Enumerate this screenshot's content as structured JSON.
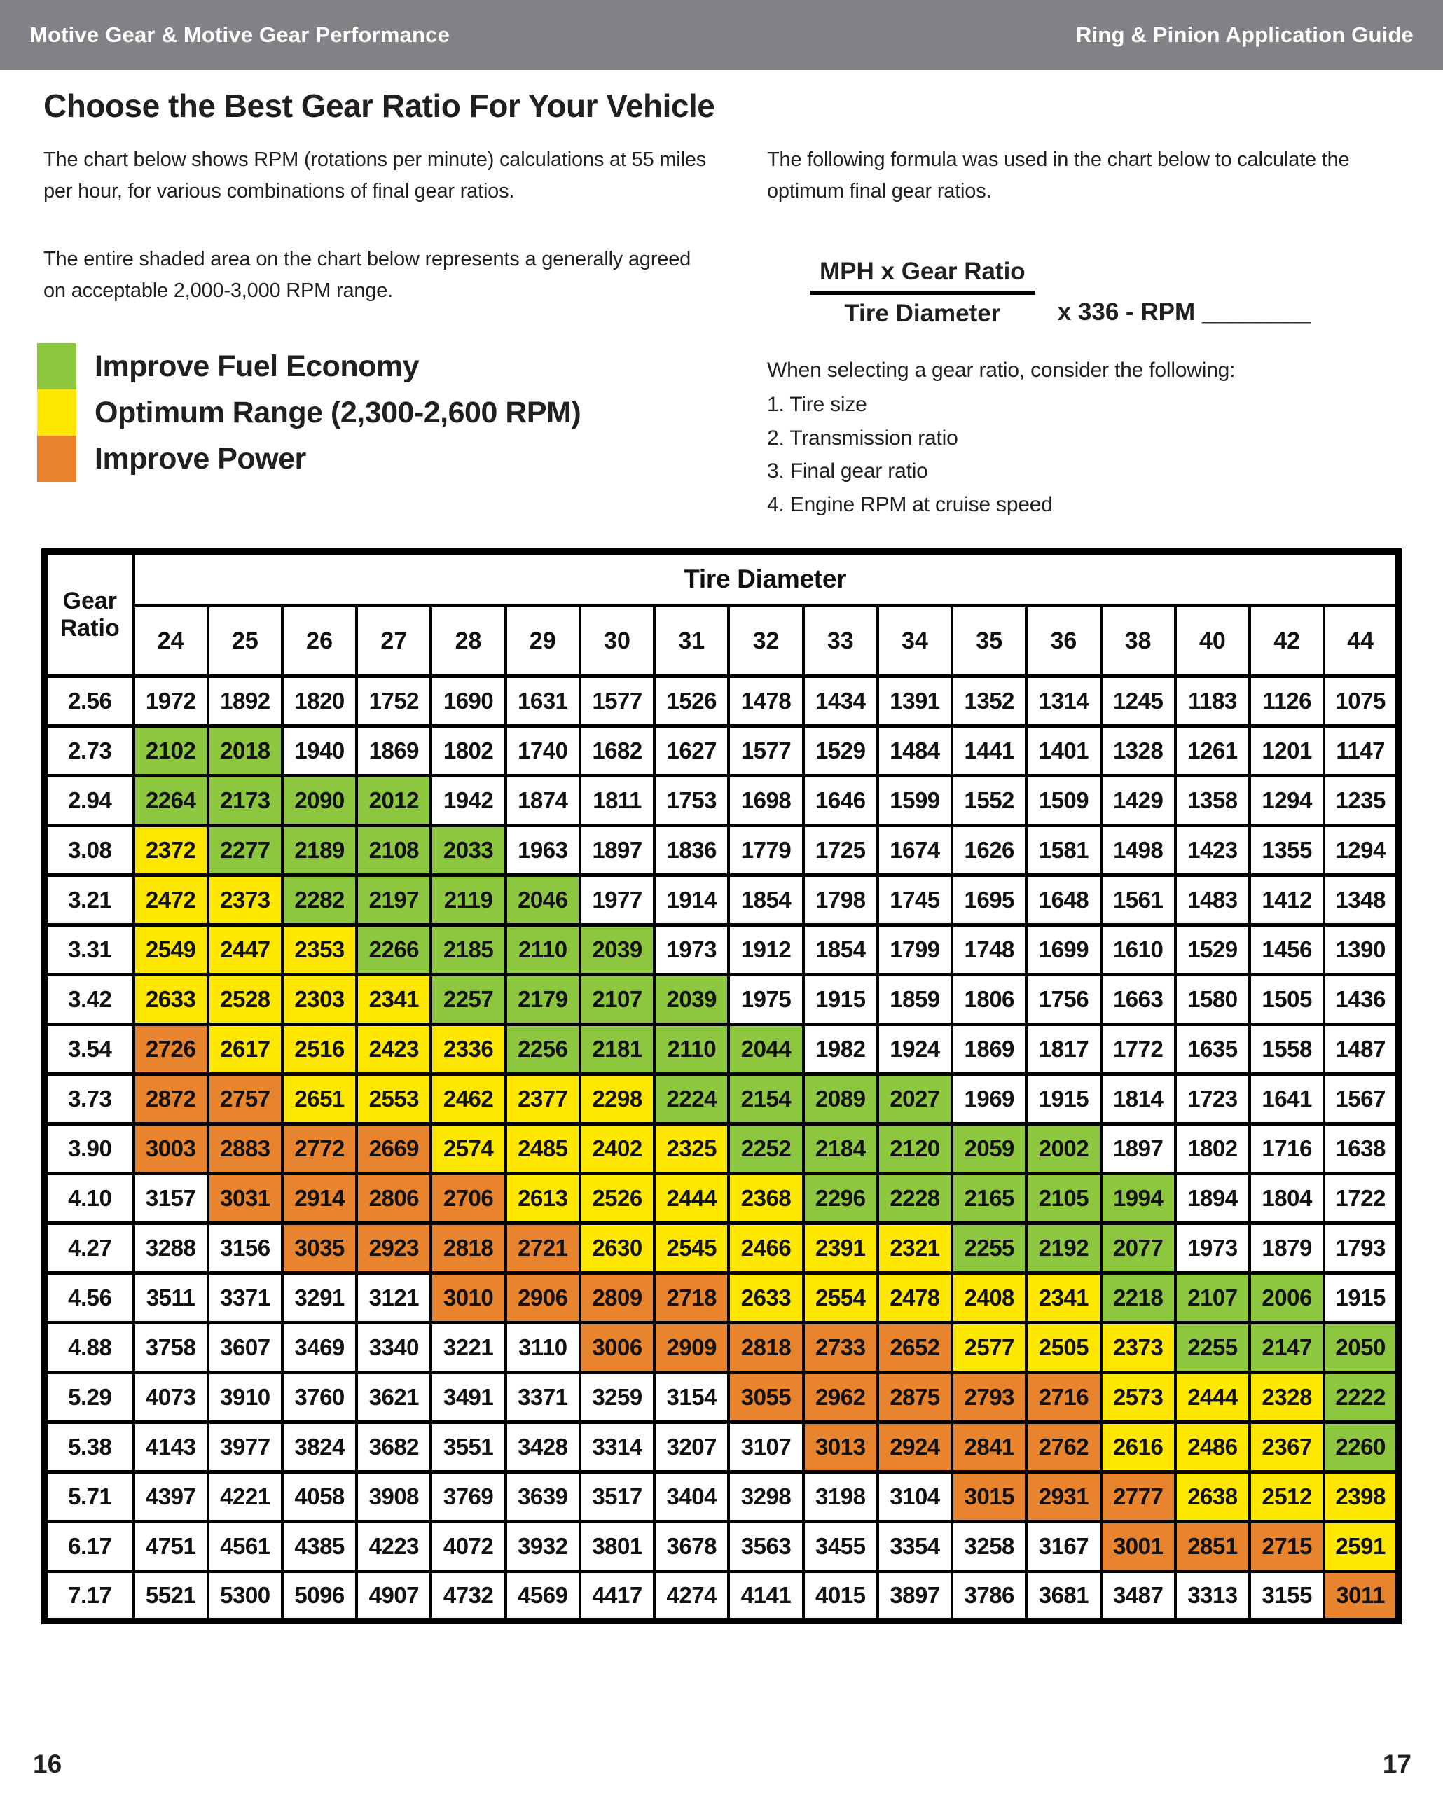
{
  "header": {
    "left": "Motive Gear & Motive Gear Performance",
    "right": "Ring & Pinion Application Guide"
  },
  "intro": {
    "title": "Choose the Best Gear Ratio For Your Vehicle",
    "para1": "The chart below shows RPM (rotations per minute) calculations at 55 miles per hour, for various combinations of final gear ratios.",
    "para2": "The entire shaded area on the chart below represents a generally agreed on acceptable 2,000-3,000 RPM range."
  },
  "legend": {
    "items": [
      {
        "key": "g",
        "label": "Improve Fuel Economy",
        "color": "#8DC63F"
      },
      {
        "key": "y",
        "label": "Optimum Range (2,300-2,600 RPM)",
        "color": "#FFE800"
      },
      {
        "key": "o",
        "label": "Improve Power",
        "color": "#E8832E"
      }
    ]
  },
  "formula": {
    "intro": "The following formula was used in the chart below to calculate the optimum final gear ratios.",
    "numerator": "MPH x Gear Ratio",
    "denominator": "Tire Diameter",
    "suffix": "x 336 - RPM ________",
    "considerations_title": "When selecting a gear ratio, consider the following:",
    "considerations": [
      "1. Tire size",
      "2. Transmission ratio",
      "3. Final gear ratio",
      "4. Engine RPM at cruise speed"
    ]
  },
  "colors": {
    "header_bar": "#808285",
    "table_white": "#FFFFFF",
    "green": "#8DC63F",
    "yellow": "#FFE800",
    "orange": "#E8832E"
  },
  "chart_data": {
    "type": "table",
    "title": "Tire Diameter",
    "row_header": "Gear Ratio",
    "columns": [
      "24",
      "25",
      "26",
      "27",
      "28",
      "29",
      "30",
      "31",
      "32",
      "33",
      "34",
      "35",
      "36",
      "38",
      "40",
      "42",
      "44"
    ],
    "color_key": {
      "w": "#FFFFFF",
      "g": "#8DC63F",
      "y": "#FFE800",
      "o": "#E8832E"
    },
    "legend_meaning": {
      "g": "Improve Fuel Economy",
      "y": "Optimum Range (2,300-2,600 RPM)",
      "o": "Improve Power"
    },
    "rows": [
      {
        "ratio": "2.56",
        "values": [
          1972,
          1892,
          1820,
          1752,
          1690,
          1631,
          1577,
          1526,
          1478,
          1434,
          1391,
          1352,
          1314,
          1245,
          1183,
          1126,
          1075
        ],
        "colors": [
          "w",
          "w",
          "w",
          "w",
          "w",
          "w",
          "w",
          "w",
          "w",
          "w",
          "w",
          "w",
          "w",
          "w",
          "w",
          "w",
          "w"
        ]
      },
      {
        "ratio": "2.73",
        "values": [
          2102,
          2018,
          1940,
          1869,
          1802,
          1740,
          1682,
          1627,
          1577,
          1529,
          1484,
          1441,
          1401,
          1328,
          1261,
          1201,
          1147
        ],
        "colors": [
          "g",
          "g",
          "w",
          "w",
          "w",
          "w",
          "w",
          "w",
          "w",
          "w",
          "w",
          "w",
          "w",
          "w",
          "w",
          "w",
          "w"
        ]
      },
      {
        "ratio": "2.94",
        "values": [
          2264,
          2173,
          2090,
          2012,
          1942,
          1874,
          1811,
          1753,
          1698,
          1646,
          1599,
          1552,
          1509,
          1429,
          1358,
          1294,
          1235
        ],
        "colors": [
          "g",
          "g",
          "g",
          "g",
          "w",
          "w",
          "w",
          "w",
          "w",
          "w",
          "w",
          "w",
          "w",
          "w",
          "w",
          "w",
          "w"
        ]
      },
      {
        "ratio": "3.08",
        "values": [
          2372,
          2277,
          2189,
          2108,
          2033,
          1963,
          1897,
          1836,
          1779,
          1725,
          1674,
          1626,
          1581,
          1498,
          1423,
          1355,
          1294
        ],
        "colors": [
          "y",
          "g",
          "g",
          "g",
          "g",
          "w",
          "w",
          "w",
          "w",
          "w",
          "w",
          "w",
          "w",
          "w",
          "w",
          "w",
          "w"
        ]
      },
      {
        "ratio": "3.21",
        "values": [
          2472,
          2373,
          2282,
          2197,
          2119,
          2046,
          1977,
          1914,
          1854,
          1798,
          1745,
          1695,
          1648,
          1561,
          1483,
          1412,
          1348
        ],
        "colors": [
          "y",
          "y",
          "g",
          "g",
          "g",
          "g",
          "w",
          "w",
          "w",
          "w",
          "w",
          "w",
          "w",
          "w",
          "w",
          "w",
          "w"
        ]
      },
      {
        "ratio": "3.31",
        "values": [
          2549,
          2447,
          2353,
          2266,
          2185,
          2110,
          2039,
          1973,
          1912,
          1854,
          1799,
          1748,
          1699,
          1610,
          1529,
          1456,
          1390
        ],
        "colors": [
          "y",
          "y",
          "y",
          "g",
          "g",
          "g",
          "g",
          "w",
          "w",
          "w",
          "w",
          "w",
          "w",
          "w",
          "w",
          "w",
          "w"
        ]
      },
      {
        "ratio": "3.42",
        "values": [
          2633,
          2528,
          2303,
          2341,
          2257,
          2179,
          2107,
          2039,
          1975,
          1915,
          1859,
          1806,
          1756,
          1663,
          1580,
          1505,
          1436
        ],
        "colors": [
          "y",
          "y",
          "y",
          "y",
          "g",
          "g",
          "g",
          "g",
          "w",
          "w",
          "w",
          "w",
          "w",
          "w",
          "w",
          "w",
          "w"
        ]
      },
      {
        "ratio": "3.54",
        "values": [
          2726,
          2617,
          2516,
          2423,
          2336,
          2256,
          2181,
          2110,
          2044,
          1982,
          1924,
          1869,
          1817,
          1772,
          1635,
          1558,
          1487
        ],
        "colors": [
          "o",
          "y",
          "y",
          "y",
          "y",
          "g",
          "g",
          "g",
          "g",
          "w",
          "w",
          "w",
          "w",
          "w",
          "w",
          "w",
          "w"
        ]
      },
      {
        "ratio": "3.73",
        "values": [
          2872,
          2757,
          2651,
          2553,
          2462,
          2377,
          2298,
          2224,
          2154,
          2089,
          2027,
          1969,
          1915,
          1814,
          1723,
          1641,
          1567
        ],
        "colors": [
          "o",
          "o",
          "y",
          "y",
          "y",
          "y",
          "y",
          "g",
          "g",
          "g",
          "g",
          "w",
          "w",
          "w",
          "w",
          "w",
          "w"
        ]
      },
      {
        "ratio": "3.90",
        "values": [
          3003,
          2883,
          2772,
          2669,
          2574,
          2485,
          2402,
          2325,
          2252,
          2184,
          2120,
          2059,
          2002,
          1897,
          1802,
          1716,
          1638
        ],
        "colors": [
          "o",
          "o",
          "o",
          "o",
          "y",
          "y",
          "y",
          "y",
          "g",
          "g",
          "g",
          "g",
          "g",
          "w",
          "w",
          "w",
          "w"
        ]
      },
      {
        "ratio": "4.10",
        "values": [
          3157,
          3031,
          2914,
          2806,
          2706,
          2613,
          2526,
          2444,
          2368,
          2296,
          2228,
          2165,
          2105,
          1994,
          1894,
          1804,
          1722
        ],
        "colors": [
          "w",
          "o",
          "o",
          "o",
          "o",
          "y",
          "y",
          "y",
          "y",
          "g",
          "g",
          "g",
          "g",
          "g",
          "w",
          "w",
          "w"
        ]
      },
      {
        "ratio": "4.27",
        "values": [
          3288,
          3156,
          3035,
          2923,
          2818,
          2721,
          2630,
          2545,
          2466,
          2391,
          2321,
          2255,
          2192,
          2077,
          1973,
          1879,
          1793
        ],
        "colors": [
          "w",
          "w",
          "o",
          "o",
          "o",
          "o",
          "y",
          "y",
          "y",
          "y",
          "y",
          "g",
          "g",
          "g",
          "w",
          "w",
          "w"
        ]
      },
      {
        "ratio": "4.56",
        "values": [
          3511,
          3371,
          3291,
          3121,
          3010,
          2906,
          2809,
          2718,
          2633,
          2554,
          2478,
          2408,
          2341,
          2218,
          2107,
          2006,
          1915
        ],
        "colors": [
          "w",
          "w",
          "w",
          "w",
          "o",
          "o",
          "o",
          "o",
          "y",
          "y",
          "y",
          "y",
          "y",
          "g",
          "g",
          "g",
          "w"
        ]
      },
      {
        "ratio": "4.88",
        "values": [
          3758,
          3607,
          3469,
          3340,
          3221,
          3110,
          3006,
          2909,
          2818,
          2733,
          2652,
          2577,
          2505,
          2373,
          2255,
          2147,
          2050
        ],
        "colors": [
          "w",
          "w",
          "w",
          "w",
          "w",
          "w",
          "o",
          "o",
          "o",
          "o",
          "o",
          "y",
          "y",
          "y",
          "g",
          "g",
          "g"
        ]
      },
      {
        "ratio": "5.29",
        "values": [
          4073,
          3910,
          3760,
          3621,
          3491,
          3371,
          3259,
          3154,
          3055,
          2962,
          2875,
          2793,
          2716,
          2573,
          2444,
          2328,
          2222
        ],
        "colors": [
          "w",
          "w",
          "w",
          "w",
          "w",
          "w",
          "w",
          "w",
          "o",
          "o",
          "o",
          "o",
          "o",
          "y",
          "y",
          "y",
          "g"
        ]
      },
      {
        "ratio": "5.38",
        "values": [
          4143,
          3977,
          3824,
          3682,
          3551,
          3428,
          3314,
          3207,
          3107,
          3013,
          2924,
          2841,
          2762,
          2616,
          2486,
          2367,
          2260
        ],
        "colors": [
          "w",
          "w",
          "w",
          "w",
          "w",
          "w",
          "w",
          "w",
          "w",
          "o",
          "o",
          "o",
          "o",
          "y",
          "y",
          "y",
          "g"
        ]
      },
      {
        "ratio": "5.71",
        "values": [
          4397,
          4221,
          4058,
          3908,
          3769,
          3639,
          3517,
          3404,
          3298,
          3198,
          3104,
          3015,
          2931,
          2777,
          2638,
          2512,
          2398
        ],
        "colors": [
          "w",
          "w",
          "w",
          "w",
          "w",
          "w",
          "w",
          "w",
          "w",
          "w",
          "w",
          "o",
          "o",
          "o",
          "y",
          "y",
          "y"
        ]
      },
      {
        "ratio": "6.17",
        "values": [
          4751,
          4561,
          4385,
          4223,
          4072,
          3932,
          3801,
          3678,
          3563,
          3455,
          3354,
          3258,
          3167,
          3001,
          2851,
          2715,
          2591
        ],
        "colors": [
          "w",
          "w",
          "w",
          "w",
          "w",
          "w",
          "w",
          "w",
          "w",
          "w",
          "w",
          "w",
          "w",
          "o",
          "o",
          "o",
          "y"
        ]
      },
      {
        "ratio": "7.17",
        "values": [
          5521,
          5300,
          5096,
          4907,
          4732,
          4569,
          4417,
          4274,
          4141,
          4015,
          3897,
          3786,
          3681,
          3487,
          3313,
          3155,
          3011
        ],
        "colors": [
          "w",
          "w",
          "w",
          "w",
          "w",
          "w",
          "w",
          "w",
          "w",
          "w",
          "w",
          "w",
          "w",
          "w",
          "w",
          "w",
          "o"
        ]
      }
    ]
  },
  "footer": {
    "left_page": "16",
    "right_page": "17"
  }
}
